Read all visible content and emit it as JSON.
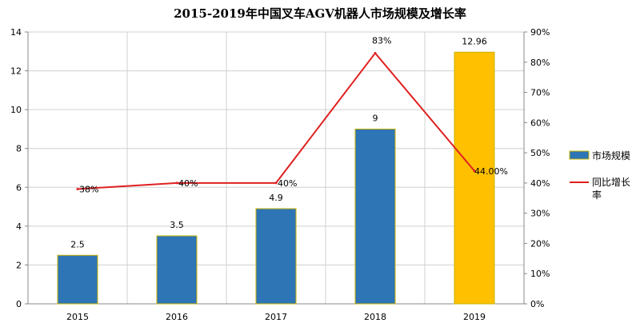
{
  "chart_data": {
    "type": "bar",
    "title": "2015-2019年中国叉车AGV机器人市场规模及增长率",
    "categories": [
      "2015",
      "2016",
      "2017",
      "2018",
      "2019"
    ],
    "series": [
      {
        "name": "市场规模",
        "type": "bar",
        "axis": "left",
        "values": [
          2.5,
          3.5,
          4.9,
          9,
          12.96
        ],
        "data_labels": [
          "2.5",
          "3.5",
          "4.9",
          "9",
          "12.96"
        ],
        "colors": [
          "#2e75b6",
          "#2e75b6",
          "#2e75b6",
          "#2e75b6",
          "#ffc000"
        ]
      },
      {
        "name": "同比增长率",
        "type": "line",
        "axis": "right",
        "values": [
          38,
          40,
          40,
          83,
          44
        ],
        "data_labels": [
          "38%",
          "40%",
          "40%",
          "83%",
          "44.00%"
        ],
        "color": "#e02020"
      }
    ],
    "y_left": {
      "ylim": [
        0,
        14
      ],
      "ticks": [
        "0",
        "2",
        "4",
        "6",
        "8",
        "10",
        "12",
        "14"
      ]
    },
    "y_right": {
      "ylim": [
        0,
        90
      ],
      "ticks": [
        "0%",
        "10%",
        "20%",
        "30%",
        "40%",
        "50%",
        "60%",
        "70%",
        "80%",
        "90%"
      ]
    },
    "grid": true,
    "legend_position": "right"
  }
}
